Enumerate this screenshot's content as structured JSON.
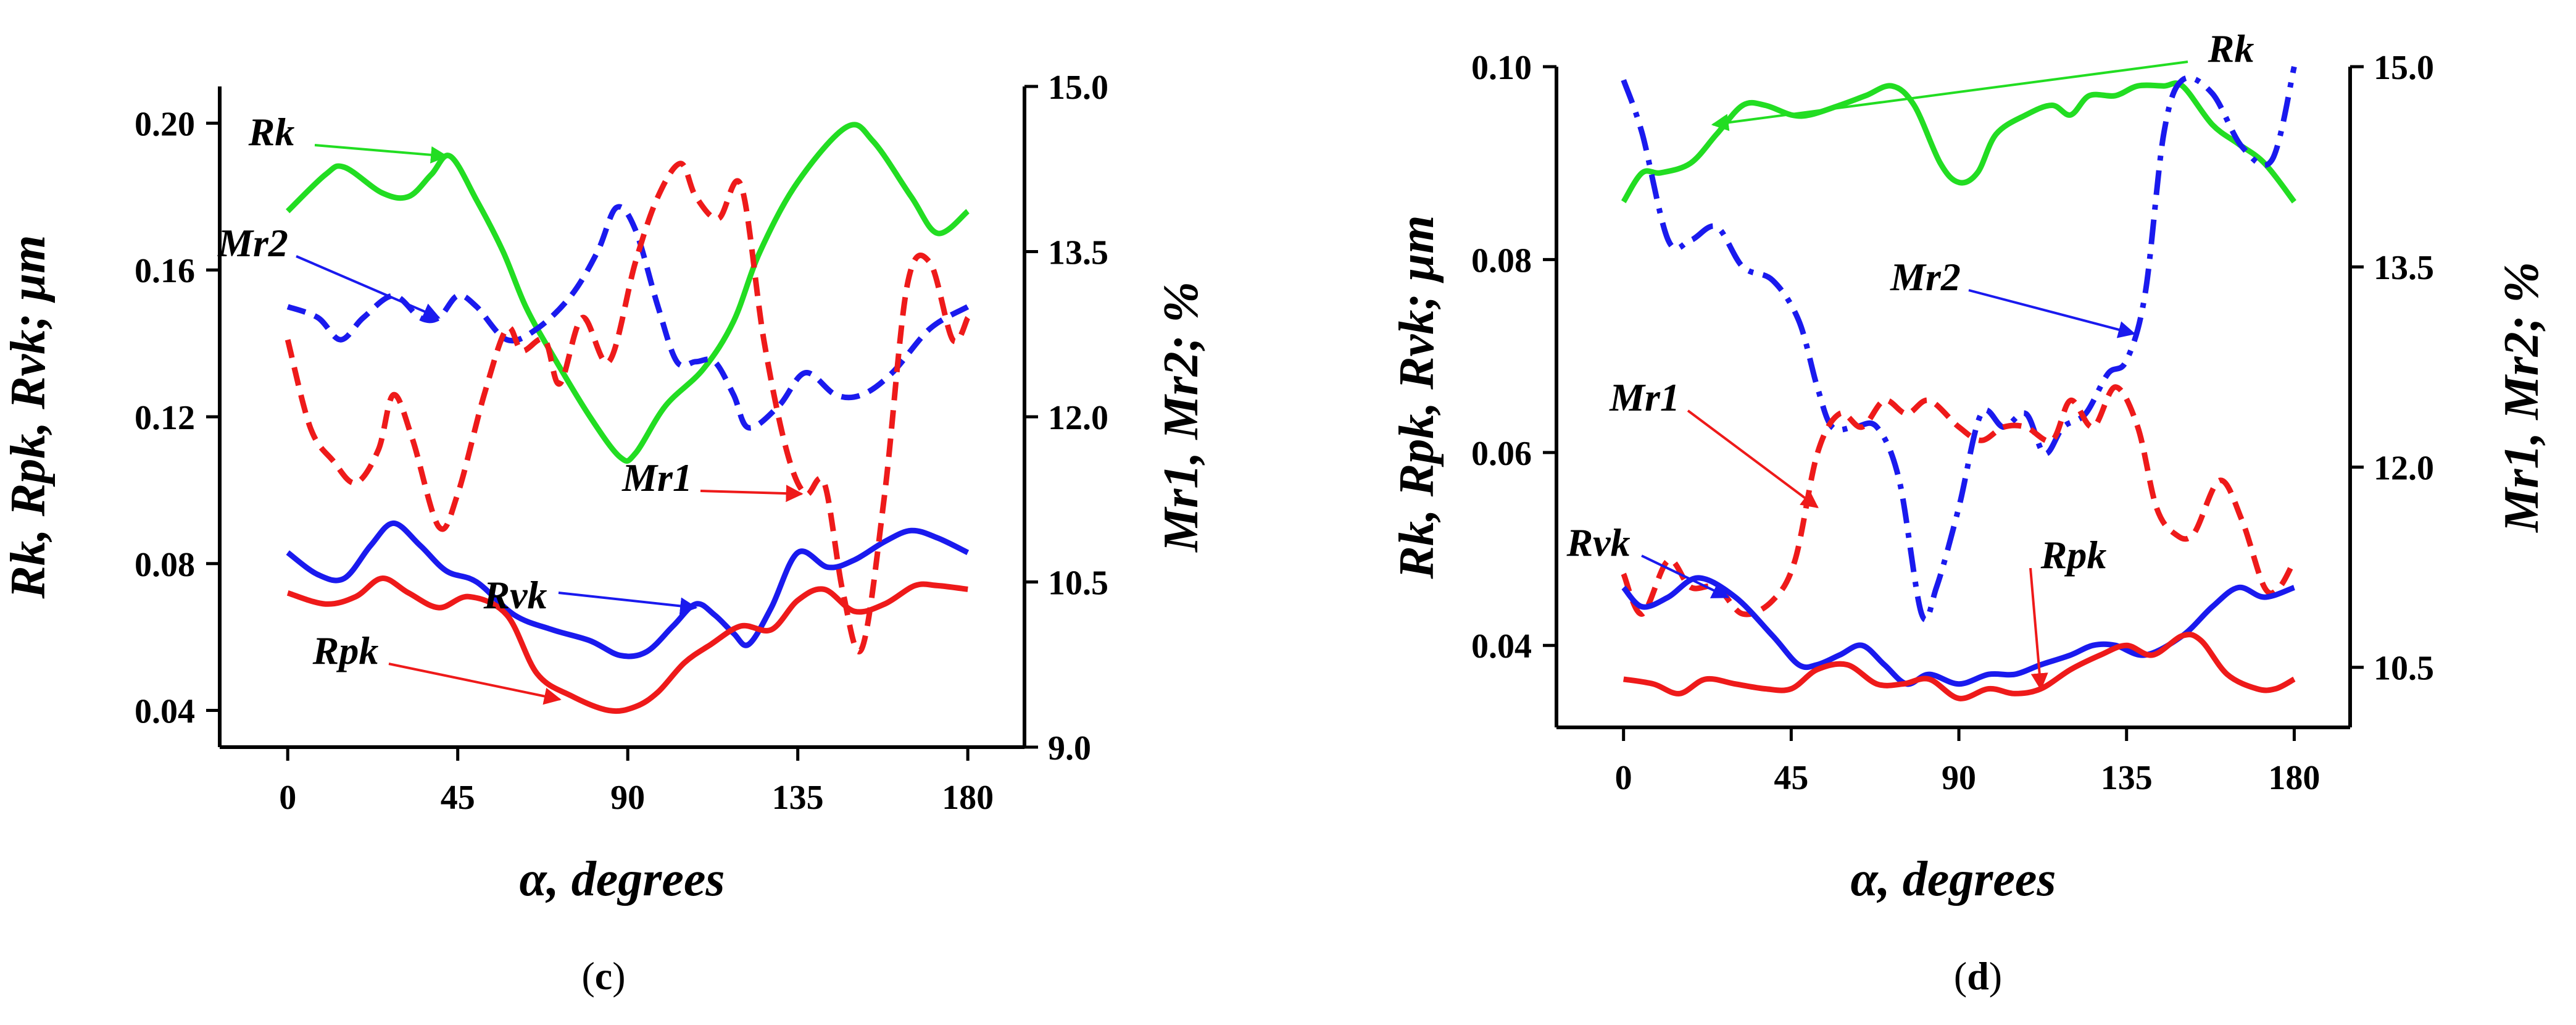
{
  "chart_data": [
    {
      "type": "line",
      "panel_label": "c",
      "xlabel": "α, degrees",
      "ylabel_left": "Rk, Rpk, Rvk; μm",
      "ylabel_right": "Mr1, Mr2; %",
      "x_ticks": [
        0,
        45,
        90,
        135,
        180
      ],
      "y_left_ticks": [
        "0.04",
        "0.08",
        "0.12",
        "0.16",
        "0.20"
      ],
      "y_right_ticks": [
        "9.0",
        "10.5",
        "12.0",
        "13.5",
        "15.0"
      ],
      "xlim": [
        -18,
        195
      ],
      "ylim_left": [
        0.03,
        0.21
      ],
      "ylim_right": [
        9.0,
        15.0
      ],
      "series": [
        {
          "name": "Rk",
          "axis": "left",
          "color": "#22dd22",
          "dash": "solid",
          "x": [
            0,
            10,
            15,
            25,
            32,
            38,
            43,
            50,
            57,
            63,
            70,
            80,
            88,
            92,
            100,
            110,
            118,
            125,
            135,
            148,
            155,
            165,
            172,
            180
          ],
          "y": [
            0.176,
            0.186,
            0.188,
            0.181,
            0.18,
            0.186,
            0.191,
            0.179,
            0.165,
            0.15,
            0.137,
            0.12,
            0.109,
            0.11,
            0.123,
            0.133,
            0.146,
            0.165,
            0.184,
            0.199,
            0.195,
            0.18,
            0.17,
            0.176
          ]
        },
        {
          "name": "Rvk",
          "axis": "left",
          "color": "#1a1aee",
          "dash": "solid",
          "x": [
            0,
            8,
            15,
            22,
            28,
            35,
            42,
            50,
            60,
            70,
            80,
            88,
            95,
            102,
            108,
            113,
            118,
            122,
            128,
            135,
            143,
            150,
            158,
            165,
            172,
            180
          ],
          "y": [
            0.083,
            0.077,
            0.076,
            0.085,
            0.091,
            0.085,
            0.078,
            0.075,
            0.066,
            0.062,
            0.059,
            0.055,
            0.056,
            0.063,
            0.069,
            0.066,
            0.061,
            0.058,
            0.068,
            0.083,
            0.079,
            0.081,
            0.086,
            0.089,
            0.087,
            0.083
          ]
        },
        {
          "name": "Rpk",
          "axis": "left",
          "color": "#ee1a1a",
          "dash": "solid",
          "x": [
            0,
            10,
            18,
            25,
            32,
            40,
            48,
            58,
            66,
            75,
            85,
            92,
            98,
            105,
            112,
            120,
            128,
            135,
            142,
            150,
            158,
            166,
            172,
            180
          ],
          "y": [
            0.072,
            0.069,
            0.071,
            0.076,
            0.072,
            0.068,
            0.071,
            0.066,
            0.05,
            0.044,
            0.04,
            0.041,
            0.045,
            0.053,
            0.058,
            0.063,
            0.062,
            0.07,
            0.073,
            0.067,
            0.069,
            0.074,
            0.074,
            0.073
          ]
        },
        {
          "name": "Mr2",
          "axis": "right",
          "color": "#1a1aee",
          "dash": "dash",
          "x": [
            0,
            8,
            14,
            20,
            28,
            35,
            40,
            45,
            50,
            58,
            66,
            75,
            82,
            87,
            92,
            98,
            103,
            108,
            113,
            118,
            122,
            130,
            137,
            145,
            152,
            160,
            170,
            180
          ],
          "y": [
            13.0,
            12.9,
            12.7,
            12.9,
            13.1,
            12.9,
            12.9,
            13.1,
            13.0,
            12.7,
            12.8,
            13.1,
            13.5,
            13.9,
            13.7,
            13.0,
            12.5,
            12.5,
            12.5,
            12.2,
            11.9,
            12.1,
            12.4,
            12.2,
            12.2,
            12.4,
            12.8,
            13.0
          ]
        },
        {
          "name": "Mr1",
          "axis": "right",
          "color": "#ee1a1a",
          "dash": "dash",
          "x": [
            0,
            6,
            12,
            18,
            24,
            28,
            33,
            40,
            45,
            52,
            58,
            62,
            68,
            72,
            78,
            85,
            92,
            98,
            104,
            108,
            114,
            120,
            126,
            132,
            137,
            142,
            147,
            152,
            158,
            164,
            170,
            176,
            180
          ],
          "y": [
            12.7,
            11.9,
            11.6,
            11.4,
            11.7,
            12.2,
            11.8,
            11.0,
            11.3,
            12.2,
            12.8,
            12.6,
            12.7,
            12.3,
            12.9,
            12.5,
            13.4,
            14.0,
            14.3,
            14.0,
            13.8,
            14.1,
            12.7,
            11.7,
            11.3,
            11.4,
            10.4,
            9.9,
            11.3,
            13.2,
            13.4,
            12.7,
            12.9
          ]
        }
      ],
      "annotations": [
        {
          "text": "Rk",
          "target_series": "Rk",
          "arrow_to": [
            42,
            0.191
          ]
        },
        {
          "text": "Mr2",
          "target_series": "Mr2",
          "arrow_to": [
            40,
            12.9
          ]
        },
        {
          "text": "Mr1",
          "target_series": "Mr1",
          "arrow_to": [
            136,
            11.3
          ]
        },
        {
          "text": "Rvk",
          "target_series": "Rvk",
          "arrow_to": [
            108,
            0.068
          ]
        },
        {
          "text": "Rpk",
          "target_series": "Rpk",
          "arrow_to": [
            72,
            0.043
          ]
        }
      ]
    },
    {
      "type": "line",
      "panel_label": "d",
      "xlabel": "α, degrees",
      "ylabel_left": "Rk, Rpk, Rvk; μm",
      "ylabel_right": "Mr1, Mr2; %",
      "x_ticks": [
        0,
        45,
        90,
        135,
        180
      ],
      "y_left_ticks": [
        "0.04",
        "0.06",
        "0.08",
        "0.10"
      ],
      "y_right_ticks": [
        "10.5",
        "12.0",
        "13.5",
        "15.0"
      ],
      "xlim": [
        -18,
        195
      ],
      "ylim_left": [
        0.0315,
        0.1
      ],
      "ylim_right": [
        10.05,
        15.0
      ],
      "series": [
        {
          "name": "Rk",
          "axis": "left",
          "color": "#22dd22",
          "dash": "solid",
          "x": [
            0,
            5,
            10,
            18,
            25,
            32,
            38,
            45,
            50,
            58,
            65,
            72,
            78,
            85,
            90,
            95,
            100,
            108,
            115,
            120,
            125,
            132,
            138,
            145,
            150,
            158,
            165,
            172,
            180
          ],
          "y": [
            0.086,
            0.089,
            0.089,
            0.09,
            0.093,
            0.096,
            0.096,
            0.095,
            0.095,
            0.096,
            0.097,
            0.098,
            0.096,
            0.09,
            0.088,
            0.089,
            0.093,
            0.095,
            0.096,
            0.095,
            0.097,
            0.097,
            0.098,
            0.098,
            0.098,
            0.094,
            0.092,
            0.09,
            0.086
          ]
        },
        {
          "name": "Mr2",
          "axis": "right",
          "color": "#1a1aee",
          "dash": "dashdot",
          "x": [
            0,
            5,
            12,
            18,
            25,
            32,
            40,
            47,
            52,
            56,
            62,
            68,
            74,
            80,
            84,
            90,
            96,
            102,
            108,
            113,
            118,
            124,
            130,
            135,
            140,
            145,
            150,
            158,
            166,
            174,
            180
          ],
          "y": [
            14.9,
            14.5,
            13.7,
            13.7,
            13.8,
            13.5,
            13.4,
            13.1,
            12.6,
            12.3,
            12.3,
            12.3,
            11.9,
            10.9,
            11.1,
            11.7,
            12.4,
            12.3,
            12.4,
            12.1,
            12.3,
            12.4,
            12.7,
            12.8,
            13.3,
            14.5,
            14.9,
            14.8,
            14.4,
            14.3,
            15.0
          ]
        },
        {
          "name": "Mr1",
          "axis": "right",
          "color": "#ee1a1a",
          "dash": "dash",
          "x": [
            0,
            5,
            12,
            18,
            25,
            32,
            40,
            46,
            52,
            58,
            64,
            70,
            76,
            82,
            90,
            96,
            102,
            108,
            115,
            120,
            126,
            132,
            138,
            143,
            148,
            153,
            160,
            166,
            172,
            176,
            180
          ],
          "y": [
            11.2,
            10.9,
            11.3,
            11.1,
            11.1,
            10.9,
            11.0,
            11.3,
            12.1,
            12.4,
            12.3,
            12.5,
            12.4,
            12.5,
            12.3,
            12.2,
            12.3,
            12.3,
            12.2,
            12.5,
            12.3,
            12.6,
            12.3,
            11.7,
            11.5,
            11.5,
            11.9,
            11.6,
            11.1,
            11.1,
            11.3
          ]
        },
        {
          "name": "Rvk",
          "axis": "left",
          "color": "#1a1aee",
          "dash": "solid",
          "x": [
            0,
            5,
            12,
            20,
            30,
            40,
            47,
            52,
            58,
            64,
            70,
            76,
            82,
            90,
            98,
            105,
            112,
            120,
            126,
            132,
            140,
            150,
            158,
            165,
            172,
            180
          ],
          "y": [
            0.046,
            0.044,
            0.045,
            0.047,
            0.045,
            0.041,
            0.038,
            0.038,
            0.039,
            0.04,
            0.038,
            0.036,
            0.037,
            0.036,
            0.037,
            0.037,
            0.038,
            0.039,
            0.04,
            0.04,
            0.039,
            0.041,
            0.044,
            0.046,
            0.045,
            0.046
          ]
        },
        {
          "name": "Rpk",
          "axis": "left",
          "color": "#ee1a1a",
          "dash": "solid",
          "x": [
            0,
            8,
            15,
            22,
            30,
            38,
            45,
            52,
            60,
            68,
            75,
            82,
            90,
            98,
            105,
            112,
            120,
            128,
            135,
            142,
            150,
            155,
            162,
            170,
            175,
            180
          ],
          "y": [
            0.0365,
            0.036,
            0.035,
            0.0365,
            0.036,
            0.0355,
            0.0355,
            0.0375,
            0.038,
            0.036,
            0.036,
            0.0365,
            0.0345,
            0.0355,
            0.035,
            0.0355,
            0.0375,
            0.039,
            0.04,
            0.039,
            0.041,
            0.0405,
            0.037,
            0.0355,
            0.0355,
            0.0365
          ]
        }
      ],
      "annotations": [
        {
          "text": "Rk",
          "target_series": "Rk",
          "arrow_to": [
            24,
            0.094
          ]
        },
        {
          "text": "Mr2",
          "target_series": "Mr2",
          "arrow_to": [
            137,
            13.0
          ]
        },
        {
          "text": "Mr1",
          "target_series": "Mr1",
          "arrow_to": [
            52,
            11.7
          ]
        },
        {
          "text": "Rvk",
          "target_series": "Rvk",
          "arrow_to": [
            28,
            0.045
          ]
        },
        {
          "text": "Rpk",
          "target_series": "Rpk",
          "arrow_to": [
            112,
            0.0355
          ]
        }
      ]
    }
  ]
}
